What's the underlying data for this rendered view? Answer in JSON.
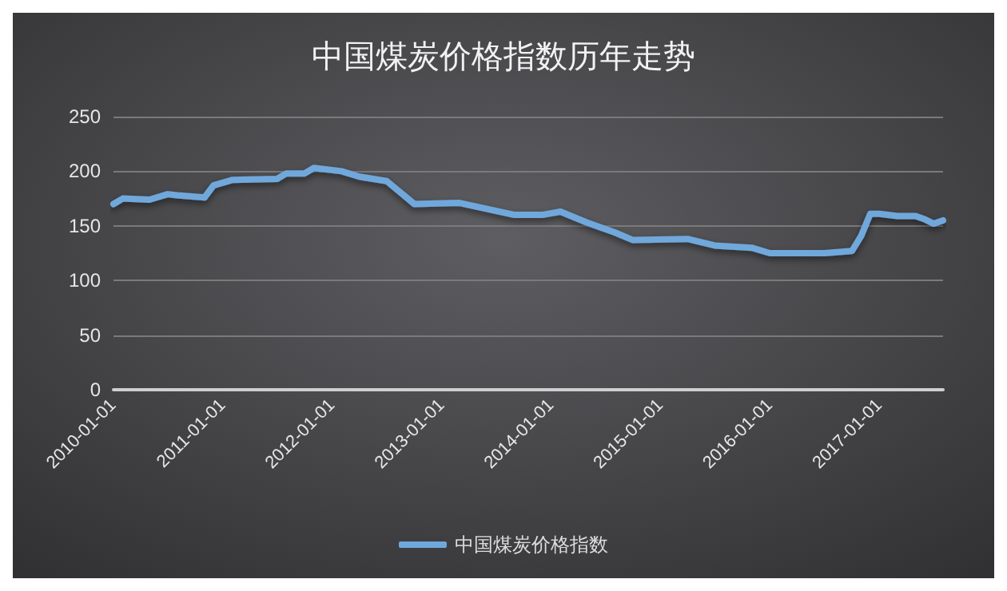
{
  "chart_data": {
    "type": "line",
    "title": "中国煤炭价格指数历年走势",
    "x": [
      "2010-01",
      "2010-02",
      "2010-05",
      "2010-07",
      "2010-08",
      "2010-11",
      "2010-12",
      "2011-02",
      "2011-07",
      "2011-08",
      "2011-10",
      "2011-11",
      "2012-02",
      "2012-04",
      "2012-07",
      "2012-10",
      "2013-03",
      "2013-09",
      "2013-12",
      "2014-02",
      "2014-05",
      "2014-08",
      "2014-10",
      "2015-04",
      "2015-07",
      "2015-11",
      "2016-01",
      "2016-07",
      "2016-10",
      "2016-11",
      "2016-12",
      "2017-01",
      "2017-03",
      "2017-05",
      "2017-06",
      "2017-07",
      "2017-08"
    ],
    "series": [
      {
        "name": "中国煤炭价格指数",
        "color": "#6fa8dc",
        "values": [
          170,
          175,
          174,
          179,
          178,
          176,
          187,
          192,
          193,
          198,
          198,
          203,
          200,
          195,
          191,
          170,
          171,
          160,
          160,
          163,
          153,
          144,
          137,
          138,
          132,
          130,
          125,
          125,
          127,
          141,
          161,
          161,
          159,
          159,
          156,
          152,
          155
        ]
      }
    ],
    "xlim": [
      "2010-01",
      "2017-08"
    ],
    "xticks": [
      "2010-01-01",
      "2011-01-01",
      "2012-01-01",
      "2013-01-01",
      "2014-01-01",
      "2015-01-01",
      "2016-01-01",
      "2017-01-01"
    ],
    "ylim": [
      0,
      250
    ],
    "yticks": [
      0,
      50,
      100,
      150,
      200,
      250
    ],
    "grid": "y",
    "legend": "bottom",
    "marker": "none",
    "line_style": "solid"
  }
}
